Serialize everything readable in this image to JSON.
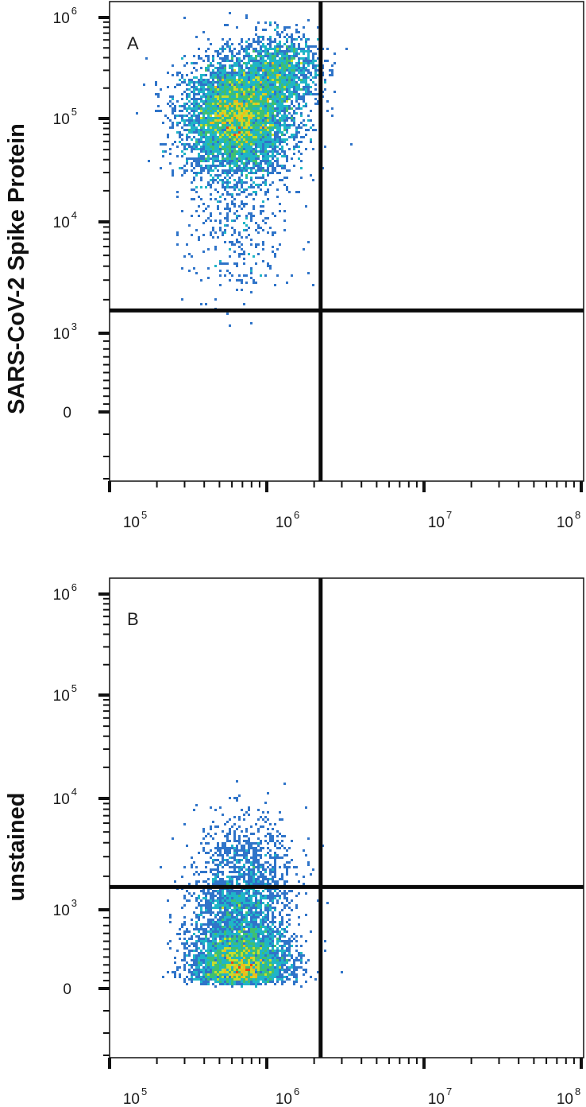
{
  "chart_data": [
    {
      "type": "scatter",
      "subtype": "flow-cytometry-density-plot",
      "panel_label": "A",
      "ylabel": "SARS-CoV-2 Spike Protein",
      "xlabel": "",
      "x_scale": "log",
      "y_scale": "biexponential",
      "xlim": [
        70000,
        110000000
      ],
      "ylim": [
        -300,
        1700000
      ],
      "x_ticks": [
        {
          "value": 100000,
          "base": "10",
          "exp": "5"
        },
        {
          "value": 1000000,
          "base": "10",
          "exp": "6"
        },
        {
          "value": 10000000,
          "base": "10",
          "exp": "7"
        },
        {
          "value": 100000000,
          "base": "10",
          "exp": "8"
        }
      ],
      "y_ticks": [
        {
          "value": 0,
          "base": "0",
          "exp": ""
        },
        {
          "value": 1000,
          "base": "10",
          "exp": "3"
        },
        {
          "value": 10000,
          "base": "10",
          "exp": "4"
        },
        {
          "value": 100000,
          "base": "10",
          "exp": "5"
        },
        {
          "value": 1000000,
          "base": "10",
          "exp": "6"
        }
      ],
      "quadrant_gate": {
        "x": 2200000,
        "y": 1600
      },
      "populations": [
        {
          "x_center": 650000,
          "y_center": 100000,
          "x_spread_log": 0.17,
          "y_spread_log": 0.28,
          "count": 5200
        },
        {
          "x_center": 1200000,
          "y_center": 300000,
          "x_spread_log": 0.13,
          "y_spread_log": 0.18,
          "count": 1300
        },
        {
          "x_center": 650000,
          "y_center": 8000,
          "x_spread_log": 0.16,
          "y_spread_log": 0.35,
          "count": 320
        }
      ],
      "grid": false,
      "colormap": [
        "#2b3da8",
        "#2f74c9",
        "#1fb5c7",
        "#3fc070",
        "#c6dd2c",
        "#f1b91a",
        "#e8421a"
      ]
    },
    {
      "type": "scatter",
      "subtype": "flow-cytometry-density-plot",
      "panel_label": "B",
      "ylabel": "unstained",
      "xlabel": "",
      "x_scale": "log",
      "y_scale": "biexponential",
      "xlim": [
        70000,
        110000000
      ],
      "ylim": [
        -300,
        1700000
      ],
      "x_ticks": [
        {
          "value": 100000,
          "base": "10",
          "exp": "5"
        },
        {
          "value": 1000000,
          "base": "10",
          "exp": "6"
        },
        {
          "value": 10000000,
          "base": "10",
          "exp": "7"
        },
        {
          "value": 100000000,
          "base": "10",
          "exp": "8"
        }
      ],
      "y_ticks": [
        {
          "value": 0,
          "base": "0",
          "exp": ""
        },
        {
          "value": 1000,
          "base": "10",
          "exp": "3"
        },
        {
          "value": 10000,
          "base": "10",
          "exp": "4"
        },
        {
          "value": 100000,
          "base": "10",
          "exp": "5"
        },
        {
          "value": 1000000,
          "base": "10",
          "exp": "6"
        }
      ],
      "quadrant_gate": {
        "x": 2200000,
        "y": 1600
      },
      "populations": [
        {
          "x_center": 680000,
          "y_center": 450,
          "x_spread_log": 0.15,
          "y_spread_log": 0.35,
          "count": 6200
        },
        {
          "x_center": 750000,
          "y_center": 2800,
          "x_spread_log": 0.16,
          "y_spread_log": 0.22,
          "count": 520
        }
      ],
      "grid": false,
      "colormap": [
        "#2b3da8",
        "#2f74c9",
        "#1fb5c7",
        "#3fc070",
        "#c6dd2c",
        "#f1b91a",
        "#e8421a"
      ]
    }
  ]
}
